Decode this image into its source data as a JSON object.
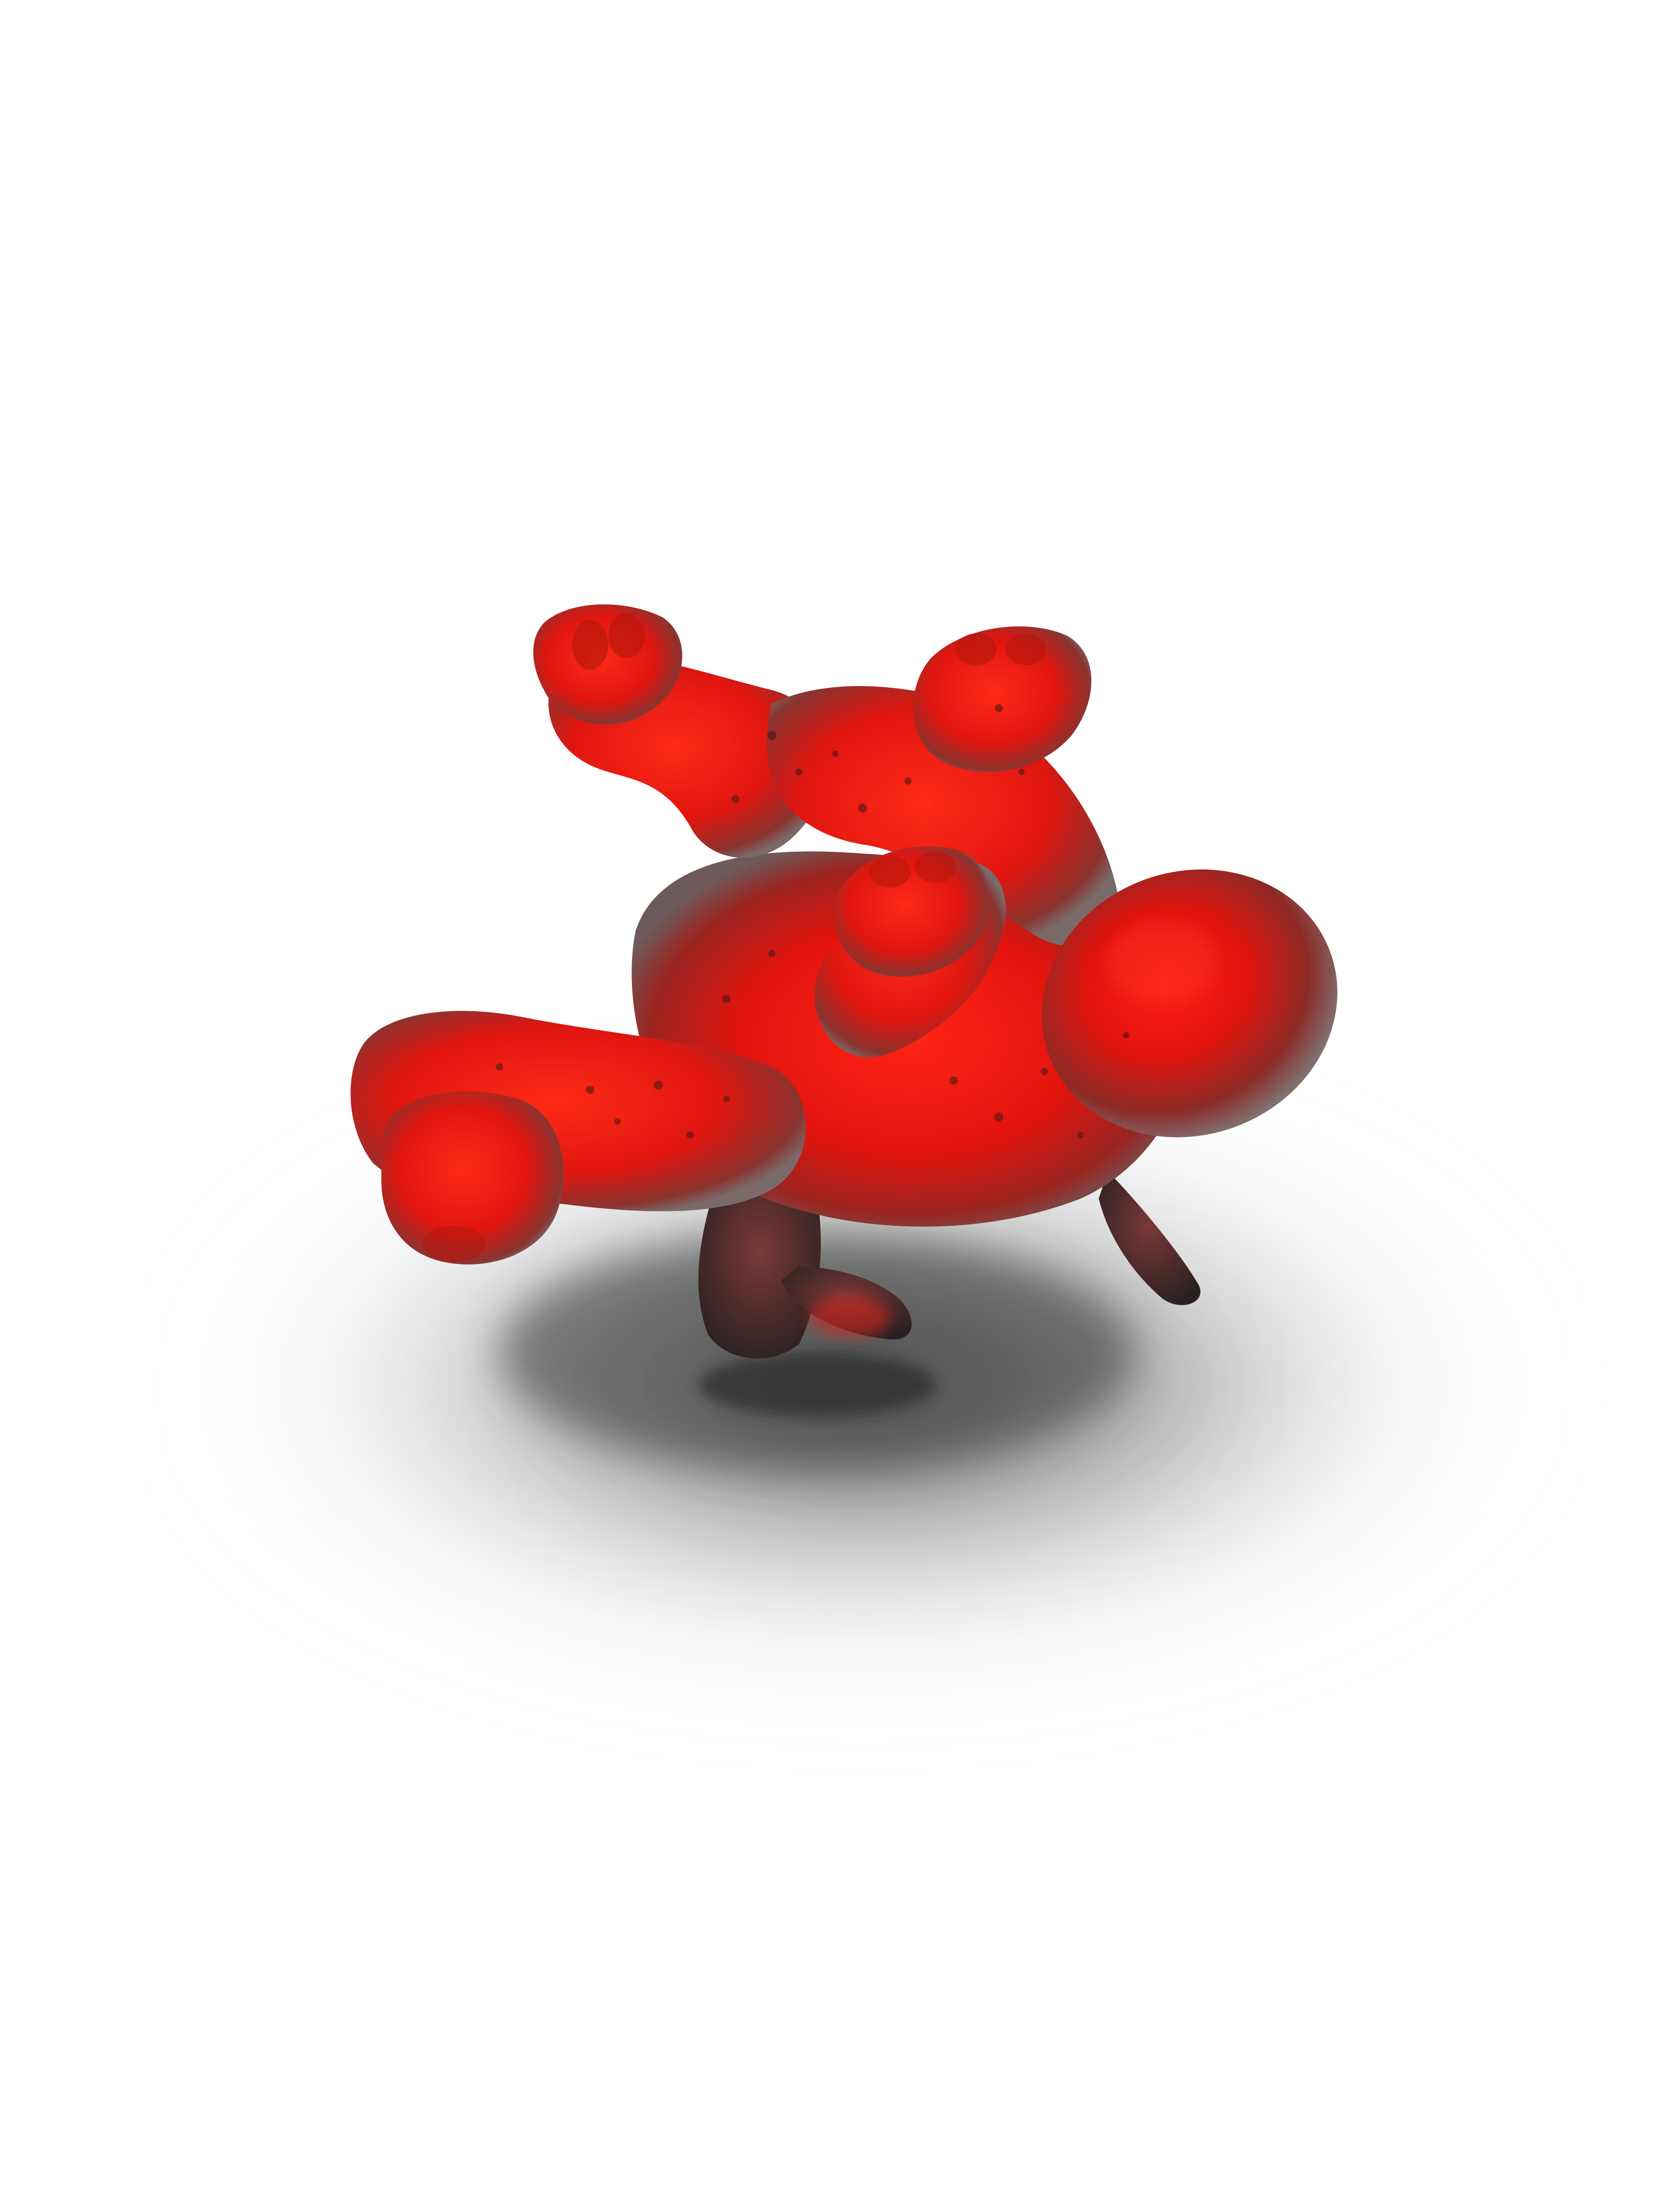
{
  "image": {
    "subject": "figure",
    "background_color": "#ffffff",
    "colors": {
      "body_red": "#ff1a12",
      "body_deep": "#c4100c",
      "body_dark": "#5c1a1a",
      "rim_gray": "#7a6a6a",
      "shadow": "#3a3a3a",
      "speckle": "#3d1a18"
    }
  }
}
